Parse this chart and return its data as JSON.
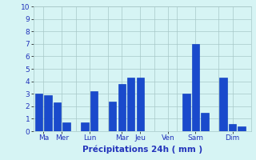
{
  "bars": [
    {
      "x": 0,
      "value": 3.0
    },
    {
      "x": 1,
      "value": 2.9
    },
    {
      "x": 2,
      "value": 2.3
    },
    {
      "x": 3,
      "value": 0.7
    },
    {
      "x": 5,
      "value": 0.7
    },
    {
      "x": 6,
      "value": 3.2
    },
    {
      "x": 8,
      "value": 2.4
    },
    {
      "x": 9,
      "value": 3.8
    },
    {
      "x": 10,
      "value": 4.3
    },
    {
      "x": 11,
      "value": 4.3
    },
    {
      "x": 16,
      "value": 3.0
    },
    {
      "x": 17,
      "value": 7.0
    },
    {
      "x": 18,
      "value": 1.5
    },
    {
      "x": 20,
      "value": 4.3
    },
    {
      "x": 21,
      "value": 0.6
    },
    {
      "x": 22,
      "value": 0.4
    }
  ],
  "group_labels": [
    "Ma",
    "Mer",
    "Lun",
    "Mar",
    "Jeu",
    "Ven",
    "Sam",
    "Dim"
  ],
  "group_ticks": [
    0.5,
    2.5,
    5.5,
    9.0,
    11.0,
    14.0,
    17.0,
    21.0
  ],
  "bar_color": "#1a4acc",
  "bar_edge_color": "#0033bb",
  "bg_color": "#d6f4f4",
  "grid_color": "#a8c8c8",
  "xlabel": "Précipitations 24h ( mm )",
  "xlabel_color": "#2233bb",
  "ytick_color": "#2233bb",
  "xtick_color": "#2233bb",
  "ylim": [
    0,
    10
  ],
  "yticks": [
    0,
    1,
    2,
    3,
    4,
    5,
    6,
    7,
    8,
    9,
    10
  ],
  "xlim": [
    -0.6,
    23.0
  ],
  "total_bars": 23
}
